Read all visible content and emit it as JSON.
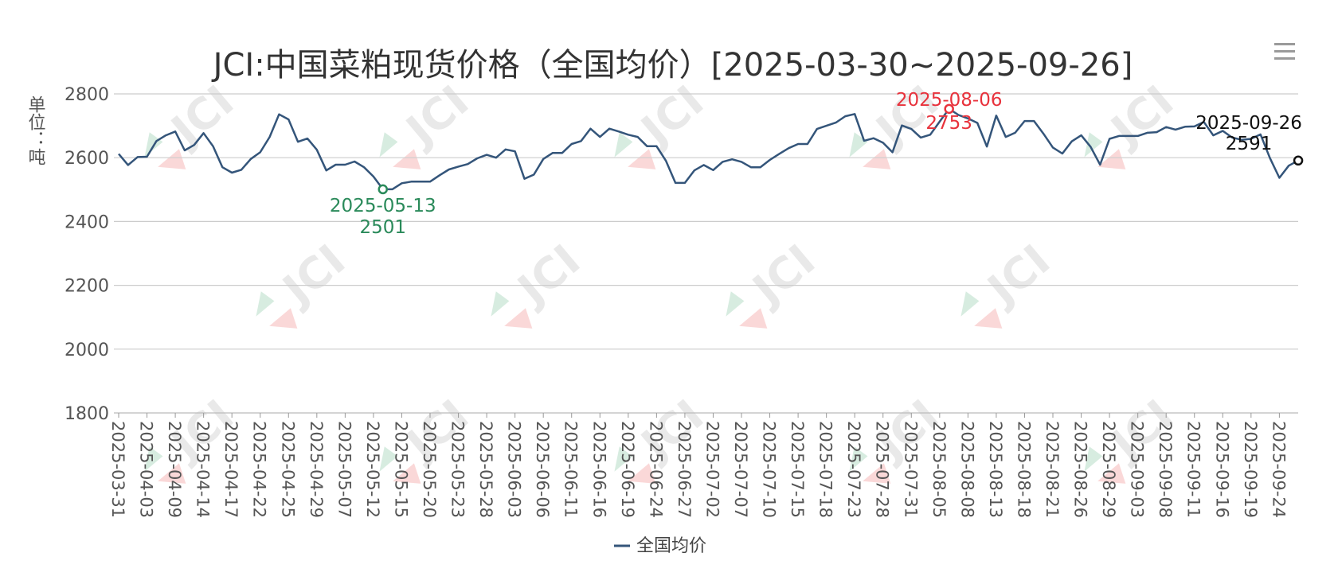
{
  "chart_data": {
    "type": "line",
    "title": "JCI:中国菜粕现货价格（全国均价）[2025-03-30~2025-09-26]",
    "ylabel": "单位：吨",
    "ylim": [
      1800,
      2800
    ],
    "yticks": [
      1800,
      2000,
      2200,
      2400,
      2600,
      2800
    ],
    "grid": true,
    "legend_position": "bottom",
    "watermark": "JCI",
    "x_tick_labels": [
      "2025-03-31",
      "2025-04-03",
      "2025-04-09",
      "2025-04-14",
      "2025-04-17",
      "2025-04-22",
      "2025-04-25",
      "2025-04-29",
      "2025-05-07",
      "2025-05-12",
      "2025-05-15",
      "2025-05-20",
      "2025-05-23",
      "2025-05-28",
      "2025-06-03",
      "2025-06-06",
      "2025-06-11",
      "2025-06-16",
      "2025-06-19",
      "2025-06-24",
      "2025-06-27",
      "2025-07-02",
      "2025-07-07",
      "2025-07-10",
      "2025-07-15",
      "2025-07-18",
      "2025-07-23",
      "2025-07-28",
      "2025-07-31",
      "2025-08-05",
      "2025-08-08",
      "2025-08-13",
      "2025-08-18",
      "2025-08-21",
      "2025-08-26",
      "2025-08-29",
      "2025-09-03",
      "2025-09-08",
      "2025-09-11",
      "2025-09-16",
      "2025-09-19",
      "2025-09-24"
    ],
    "series": [
      {
        "name": "全国均价",
        "color": "#34557a",
        "values": [
          2612,
          2577,
          2602,
          2603,
          2652,
          2670,
          2682,
          2623,
          2640,
          2677,
          2636,
          2570,
          2553,
          2562,
          2596,
          2617,
          2665,
          2736,
          2720,
          2650,
          2660,
          2625,
          2560,
          2578,
          2578,
          2588,
          2570,
          2541,
          2501,
          2501,
          2520,
          2525,
          2525,
          2525,
          2545,
          2563,
          2572,
          2580,
          2598,
          2609,
          2600,
          2626,
          2620,
          2534,
          2547,
          2596,
          2615,
          2615,
          2643,
          2652,
          2691,
          2665,
          2691,
          2682,
          2672,
          2665,
          2636,
          2636,
          2590,
          2521,
          2521,
          2560,
          2577,
          2561,
          2587,
          2595,
          2587,
          2570,
          2570,
          2593,
          2612,
          2630,
          2643,
          2643,
          2690,
          2700,
          2710,
          2730,
          2737,
          2653,
          2661,
          2647,
          2617,
          2701,
          2690,
          2663,
          2672,
          2713,
          2753,
          2734,
          2723,
          2709,
          2635,
          2732,
          2665,
          2678,
          2715,
          2715,
          2675,
          2632,
          2613,
          2651,
          2670,
          2634,
          2578,
          2659,
          2668,
          2668,
          2668,
          2678,
          2680,
          2696,
          2688,
          2697,
          2698,
          2712,
          2670,
          2684,
          2663,
          2656,
          2659,
          2673,
          2599,
          2537,
          2575,
          2591
        ]
      }
    ],
    "annotations": [
      {
        "date": "2025-05-13",
        "value": "2501",
        "kind": "min",
        "color": "#2a8a5a"
      },
      {
        "date": "2025-08-06",
        "value": "2753",
        "kind": "max",
        "color": "#e8323c"
      },
      {
        "date": "2025-09-26",
        "value": "2591",
        "kind": "last",
        "color": "#111111"
      }
    ]
  },
  "menu_icon": "hamburger-menu-icon"
}
